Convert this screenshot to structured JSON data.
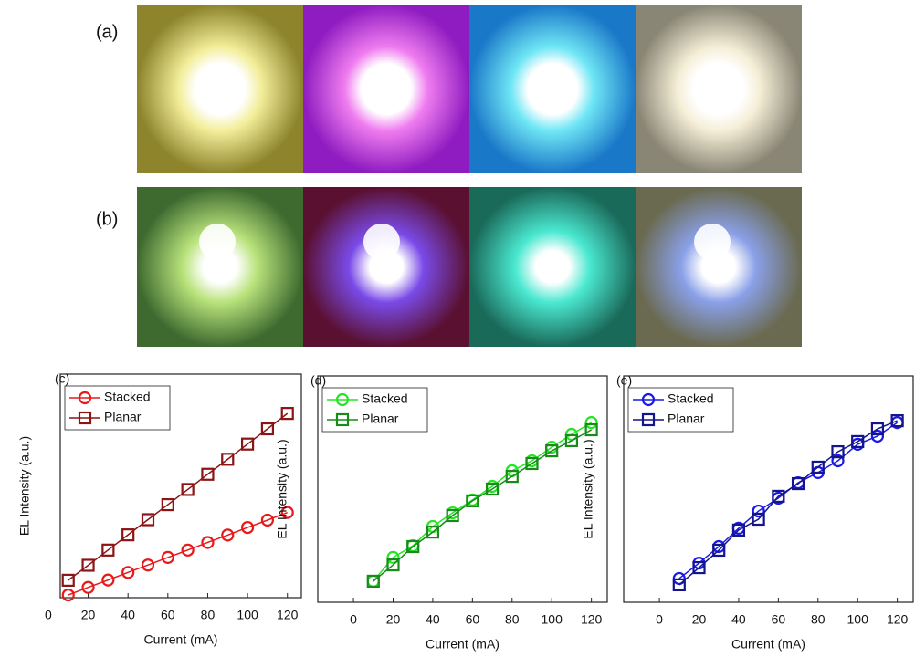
{
  "photo_rows": [
    {
      "label": "(a)"
    },
    {
      "label": "(b)"
    }
  ],
  "chart_data": [
    {
      "type": "line",
      "title": "(c)",
      "x_label": "Current (mA)",
      "y_label": "EL Intensity (a.u.)",
      "x": [
        10,
        20,
        30,
        40,
        50,
        60,
        70,
        80,
        90,
        100,
        110,
        120
      ],
      "xlim": [
        6,
        127
      ],
      "xticks": [
        0,
        20,
        40,
        60,
        80,
        100,
        120
      ],
      "ylim": [
        0,
        100
      ],
      "series": [
        {
          "name": "Stacked",
          "color": "#e8191a",
          "marker": "circle",
          "values": [
            1.2,
            4.6,
            7.9,
            11.3,
            14.6,
            18.0,
            21.3,
            24.7,
            28.0,
            31.4,
            34.7,
            38.1
          ]
        },
        {
          "name": "Planar",
          "color": "#8b1414",
          "marker": "square",
          "values": [
            7.8,
            14.5,
            21.3,
            28.1,
            34.9,
            41.6,
            48.4,
            55.2,
            61.9,
            68.7,
            75.5,
            82.4
          ]
        }
      ]
    },
    {
      "type": "line",
      "title": "(d)",
      "x_label": "Current (mA)",
      "y_label": "EL Intensity (a.u.)",
      "x": [
        10,
        20,
        30,
        40,
        50,
        60,
        70,
        80,
        90,
        100,
        110,
        120
      ],
      "xlim": [
        -18,
        128
      ],
      "xticks": [
        0,
        20,
        40,
        60,
        80,
        100,
        120
      ],
      "ylim": [
        0,
        100
      ],
      "series": [
        {
          "name": "Stacked",
          "color": "#22e622",
          "marker": "circle",
          "values": [
            9.3,
            19.8,
            25.0,
            33.5,
            39.5,
            45.2,
            51.2,
            58.1,
            62.5,
            68.5,
            74.2,
            79.4
          ]
        },
        {
          "name": "Planar",
          "color": "#1a8a1a",
          "marker": "square",
          "values": [
            9.3,
            16.5,
            24.6,
            31.0,
            38.3,
            44.8,
            50.0,
            55.6,
            61.3,
            66.9,
            71.4,
            76.2
          ]
        }
      ]
    },
    {
      "type": "line",
      "title": "(e)",
      "x_label": "Current (mA)",
      "y_label": "EL Intensity (a.u.)",
      "x": [
        10,
        20,
        30,
        40,
        50,
        60,
        70,
        80,
        90,
        100,
        110,
        120
      ],
      "xlim": [
        -18,
        128
      ],
      "xticks": [
        0,
        20,
        40,
        60,
        80,
        100,
        120
      ],
      "ylim": [
        0,
        100
      ],
      "series": [
        {
          "name": "Stacked",
          "color": "#1a1ae6",
          "marker": "circle",
          "values": [
            10.5,
            17.3,
            24.6,
            32.7,
            40.3,
            46.0,
            52.8,
            57.3,
            62.5,
            69.8,
            73.4,
            79.4
          ]
        },
        {
          "name": "Planar",
          "color": "#14148c",
          "marker": "square",
          "values": [
            7.7,
            15.3,
            23.0,
            31.9,
            36.7,
            46.8,
            52.4,
            59.7,
            66.5,
            71.0,
            76.6,
            80.2
          ]
        }
      ]
    }
  ]
}
